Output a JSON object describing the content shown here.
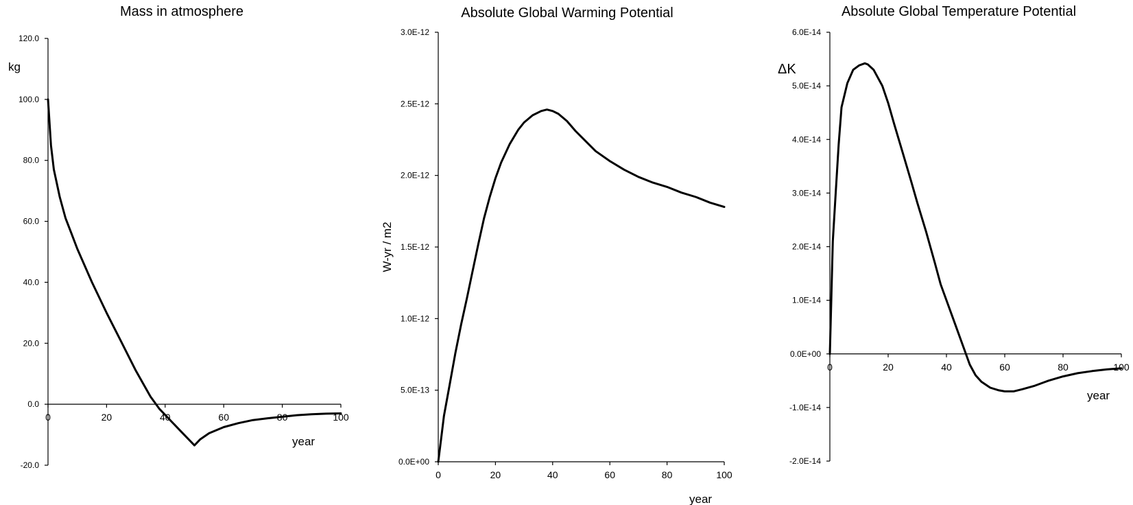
{
  "chart_data": [
    {
      "type": "line",
      "title": "Mass in atmosphere",
      "ylabel": "kg",
      "xlabel": "year",
      "xlim": [
        0,
        100
      ],
      "ylim": [
        -20,
        120
      ],
      "x_ticks": [
        0,
        20,
        40,
        60,
        80,
        100
      ],
      "y_ticks": [
        -20,
        0,
        20,
        40,
        60,
        80,
        100,
        120
      ],
      "y_tick_labels": [
        "-20.0",
        "0.0",
        "20.0",
        "40.0",
        "60.0",
        "80.0",
        "100.0",
        "120.0"
      ],
      "grid": false,
      "series": [
        {
          "x": [
            0,
            1,
            2,
            4,
            6,
            8,
            10,
            15,
            20,
            25,
            30,
            35,
            38,
            40,
            45,
            50,
            52,
            55,
            60,
            65,
            70,
            75,
            80,
            85,
            90,
            95,
            100
          ],
          "y": [
            100,
            85,
            77,
            68,
            61,
            56,
            51,
            40,
            30,
            20.5,
            11,
            2.5,
            -1.5,
            -3.5,
            -8.5,
            -13.5,
            -11.5,
            -9.5,
            -7.5,
            -6.2,
            -5.2,
            -4.6,
            -4.1,
            -3.6,
            -3.3,
            -3.1,
            -3
          ]
        }
      ]
    },
    {
      "type": "line",
      "title": "Absolute Global Warming Potential",
      "ylabel": "W-yr / m2",
      "xlabel": "year",
      "xlim": [
        0,
        100
      ],
      "ylim": [
        0,
        3e-12
      ],
      "x_ticks": [
        0,
        20,
        40,
        60,
        80,
        100
      ],
      "y_ticks": [
        0,
        5e-13,
        1e-12,
        1.5e-12,
        2e-12,
        2.5e-12,
        3e-12
      ],
      "y_tick_labels": [
        "0.0E+00",
        "5.0E-13",
        "1.0E-12",
        "1.5E-12",
        "2.0E-12",
        "2.5E-12",
        "3.0E-12"
      ],
      "grid": false,
      "series": [
        {
          "x": [
            0,
            1,
            2,
            4,
            6,
            8,
            10,
            12,
            14,
            16,
            18,
            20,
            22,
            25,
            28,
            30,
            33,
            36,
            38,
            40,
            42,
            45,
            48,
            50,
            55,
            60,
            65,
            70,
            75,
            80,
            85,
            90,
            95,
            100
          ],
          "y": [
            0,
            1.6e-13,
            3.2e-13,
            5.4e-13,
            7.6e-13,
            9.6e-13,
            1.14e-12,
            1.33e-12,
            1.52e-12,
            1.7e-12,
            1.85e-12,
            1.98e-12,
            2.09e-12,
            2.22e-12,
            2.32e-12,
            2.37e-12,
            2.42e-12,
            2.45e-12,
            2.46e-12,
            2.45e-12,
            2.43e-12,
            2.38e-12,
            2.31e-12,
            2.27e-12,
            2.17e-12,
            2.1e-12,
            2.04e-12,
            1.99e-12,
            1.95e-12,
            1.92e-12,
            1.88e-12,
            1.85e-12,
            1.81e-12,
            1.78e-12
          ]
        }
      ]
    },
    {
      "type": "line",
      "title": "Absolute Global Temperature Potential",
      "ylabel": "ΔK",
      "xlabel": "year",
      "xlim": [
        0,
        100
      ],
      "ylim": [
        -2e-14,
        6e-14
      ],
      "x_ticks": [
        0,
        20,
        40,
        60,
        80,
        100
      ],
      "y_ticks": [
        -2e-14,
        -1e-14,
        0,
        1e-14,
        2e-14,
        3e-14,
        4e-14,
        5e-14,
        6e-14
      ],
      "y_tick_labels": [
        "-2.0E-14",
        "-1.0E-14",
        "0.0E+00",
        "1.0E-14",
        "2.0E-14",
        "3.0E-14",
        "4.0E-14",
        "5.0E-14",
        "6.0E-14"
      ],
      "grid": false,
      "series": [
        {
          "x": [
            0,
            1,
            2,
            3,
            4,
            6,
            8,
            10,
            12,
            13,
            15,
            18,
            20,
            22,
            25,
            28,
            30,
            33,
            36,
            38,
            40,
            43,
            46,
            48,
            50,
            52,
            55,
            58,
            60,
            63,
            66,
            70,
            75,
            80,
            85,
            90,
            95,
            100
          ],
          "y": [
            0,
            2.1e-14,
            3e-14,
            3.9e-14,
            4.6e-14,
            5.05e-14,
            5.3e-14,
            5.38e-14,
            5.42e-14,
            5.4e-14,
            5.3e-14,
            5e-14,
            4.68e-14,
            4.3e-14,
            3.75e-14,
            3.2e-14,
            2.82e-14,
            2.28e-14,
            1.7e-14,
            1.3e-14,
            1e-14,
            5.5e-15,
            1e-15,
            -2e-15,
            -4e-15,
            -5.2e-15,
            -6.3e-15,
            -6.8e-15,
            -7e-15,
            -7e-15,
            -6.6e-15,
            -6e-15,
            -5e-15,
            -4.2e-15,
            -3.6e-15,
            -3.2e-15,
            -2.9e-15,
            -2.7e-15
          ]
        }
      ]
    }
  ]
}
